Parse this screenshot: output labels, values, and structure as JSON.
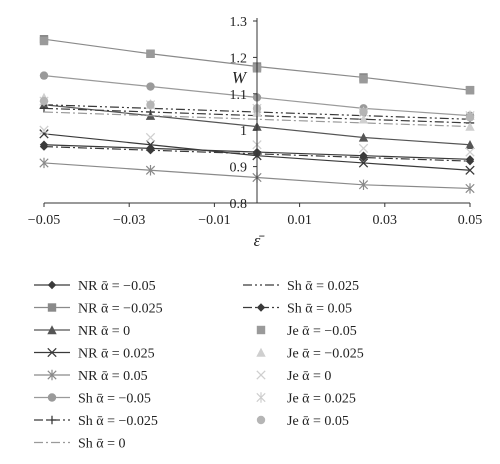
{
  "chart_data": {
    "type": "line",
    "xlabel": "ε̄",
    "ylabel": "W",
    "xlim": [
      -0.05,
      0.05
    ],
    "ylim": [
      0.8,
      1.3
    ],
    "x_ticks": [
      "−0.05",
      "−0.03",
      "−0.01",
      "0.01",
      "0.03",
      "0.05"
    ],
    "x_tick_values": [
      -0.05,
      -0.03,
      -0.01,
      0.01,
      0.03,
      0.05
    ],
    "y_ticks": [
      "0.8",
      "0.9",
      "1",
      "1.1",
      "1.2",
      "1.3"
    ],
    "y_tick_values": [
      0.8,
      0.9,
      1.0,
      1.1,
      1.2,
      1.3
    ],
    "x": [
      -0.05,
      -0.025,
      0,
      0.025,
      0.05
    ],
    "legend_columns": 2,
    "series": [
      {
        "name": "NR ᾱ = −0.05",
        "values": [
          0.96,
          0.95,
          0.94,
          0.93,
          0.92
        ],
        "color": "#3a3a3a",
        "dash": "solid",
        "marker": "diamond"
      },
      {
        "name": "NR ᾱ = −0.025",
        "values": [
          1.25,
          1.21,
          1.175,
          1.145,
          1.11
        ],
        "color": "#8a8a8a",
        "dash": "solid",
        "marker": "square"
      },
      {
        "name": "NR ᾱ = 0",
        "values": [
          1.07,
          1.04,
          1.01,
          0.98,
          0.96
        ],
        "color": "#555555",
        "dash": "solid",
        "marker": "triangle"
      },
      {
        "name": "NR ᾱ = 0.025",
        "values": [
          0.99,
          0.96,
          0.93,
          0.91,
          0.89
        ],
        "color": "#3a3a3a",
        "dash": "solid",
        "marker": "x"
      },
      {
        "name": "NR ᾱ = 0.05",
        "values": [
          0.91,
          0.89,
          0.87,
          0.85,
          0.84
        ],
        "color": "#8a8a8a",
        "dash": "solid",
        "marker": "star"
      },
      {
        "name": "Sh ᾱ = −0.05",
        "values": [
          1.15,
          1.12,
          1.09,
          1.06,
          1.04
        ],
        "color": "#9a9a9a",
        "dash": "solid",
        "marker": "circle"
      },
      {
        "name": "Sh ᾱ = −0.025",
        "values": [
          1.06,
          1.05,
          1.04,
          1.03,
          1.02
        ],
        "color": "#3a3a3a",
        "dash": "dashdot",
        "marker": "plus"
      },
      {
        "name": "Sh ᾱ = 0",
        "values": [
          1.05,
          1.04,
          1.03,
          1.02,
          1.01
        ],
        "color": "#9a9a9a",
        "dash": "dashdot",
        "marker": "none"
      },
      {
        "name": "Sh ᾱ = 0.025",
        "values": [
          1.07,
          1.06,
          1.05,
          1.04,
          1.03
        ],
        "color": "#3a3a3a",
        "dash": "dashdotdot",
        "marker": "none"
      },
      {
        "name": "Sh ᾱ = 0.05",
        "values": [
          0.955,
          0.945,
          0.935,
          0.925,
          0.915
        ],
        "color": "#3a3a3a",
        "dash": "dashdot",
        "marker": "diamond"
      },
      {
        "name": "Je ᾱ = −0.05",
        "values": [
          1.245,
          1.21,
          1.17,
          1.14,
          1.11
        ],
        "color": "#9a9a9a",
        "dash": "none",
        "marker": "square"
      },
      {
        "name": "Je ᾱ = −0.025",
        "values": [
          1.09,
          1.07,
          1.05,
          1.03,
          1.01
        ],
        "color": "#cfcfcf",
        "dash": "none",
        "marker": "triangle"
      },
      {
        "name": "Je ᾱ = 0",
        "values": [
          1.0,
          0.98,
          0.96,
          0.95,
          0.94
        ],
        "color": "#cfcfcf",
        "dash": "none",
        "marker": "x"
      },
      {
        "name": "Je ᾱ = 0.025",
        "values": [
          1.08,
          1.07,
          1.06,
          1.05,
          1.04
        ],
        "color": "#cfcfcf",
        "dash": "none",
        "marker": "star"
      },
      {
        "name": "Je ᾱ = 0.05",
        "values": [
          1.08,
          1.07,
          1.06,
          1.05,
          1.035
        ],
        "color": "#b5b5b5",
        "dash": "none",
        "marker": "circle"
      }
    ]
  }
}
